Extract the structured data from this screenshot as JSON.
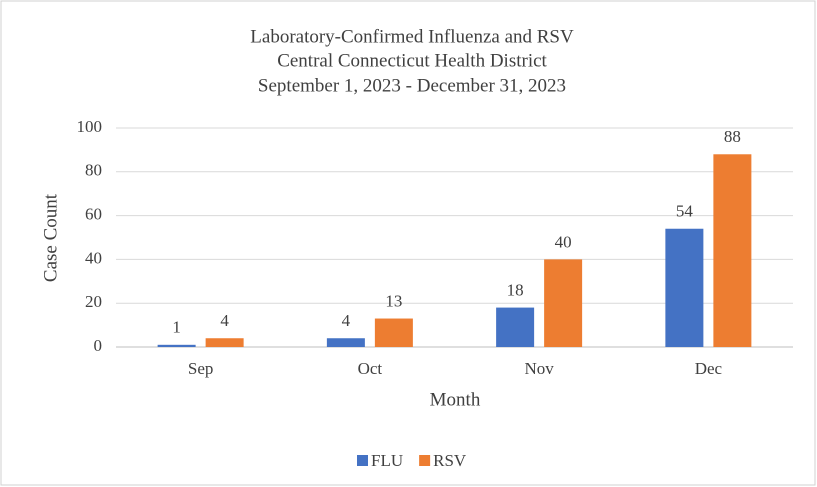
{
  "chart_data": {
    "type": "bar",
    "title": [
      "Laboratory-Confirmed Influenza and RSV",
      "Central Connecticut Health District",
      "September 1, 2023 - December 31, 2023"
    ],
    "x_label": "Month",
    "y_label": "Case Count",
    "categories": [
      "Sep",
      "Oct",
      "Nov",
      "Dec"
    ],
    "series": [
      {
        "name": "FLU",
        "color": "#4472c4",
        "values": [
          1,
          4,
          18,
          54
        ]
      },
      {
        "name": "RSV",
        "color": "#ed7d31",
        "values": [
          4,
          13,
          40,
          88
        ]
      }
    ],
    "ylim": [
      0,
      100
    ],
    "yticks": [
      0,
      20,
      40,
      60,
      80,
      100
    ],
    "grid": true,
    "legend": "bottom"
  }
}
